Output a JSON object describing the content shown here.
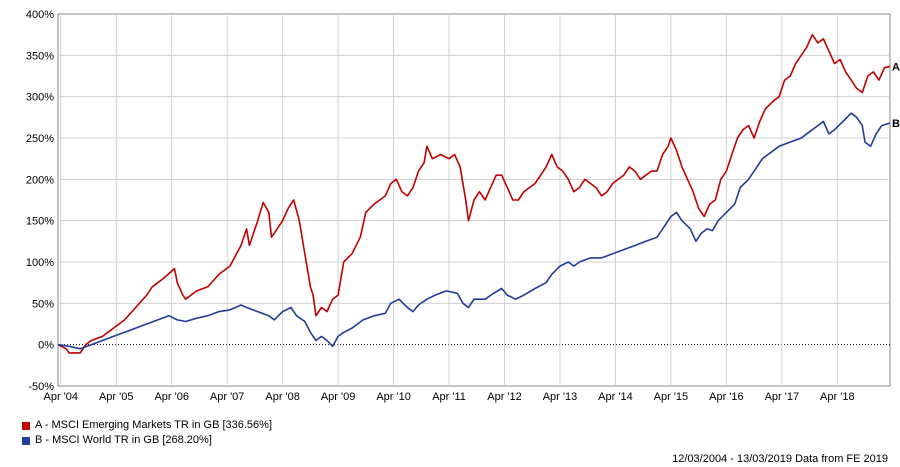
{
  "chart_data": {
    "type": "line",
    "title": "",
    "xlabel": "",
    "ylabel": "",
    "ylim": [
      -50,
      400
    ],
    "yticks": [
      -50,
      0,
      50,
      100,
      150,
      200,
      250,
      300,
      350,
      400
    ],
    "ytick_labels": [
      "-50%",
      "0%",
      "50%",
      "100%",
      "150%",
      "200%",
      "250%",
      "300%",
      "350%",
      "400%"
    ],
    "xlim": [
      2004.2,
      2019.2
    ],
    "xtick_labels": [
      {
        "label": "Apr '04",
        "x": 2004.25
      },
      {
        "label": "Apr '05",
        "x": 2005.25
      },
      {
        "label": "Apr '06",
        "x": 2006.25
      },
      {
        "label": "Apr '07",
        "x": 2007.25
      },
      {
        "label": "Apr '08",
        "x": 2008.25
      },
      {
        "label": "Apr '09",
        "x": 2009.25
      },
      {
        "label": "Apr '10",
        "x": 2010.25
      },
      {
        "label": "Apr '11",
        "x": 2011.25
      },
      {
        "label": "Apr '12",
        "x": 2012.25
      },
      {
        "label": "Apr '13",
        "x": 2013.25
      },
      {
        "label": "Apr '14",
        "x": 2014.25
      },
      {
        "label": "Apr '15",
        "x": 2015.25
      },
      {
        "label": "Apr '16",
        "x": 2016.25
      },
      {
        "label": "Apr '17",
        "x": 2017.25
      },
      {
        "label": "Apr '18",
        "x": 2018.25
      }
    ],
    "grid": true,
    "series": [
      {
        "name": "A - MSCI Emerging Markets TR in GB [336.56%]",
        "end_label": "A",
        "color": "#c00000",
        "points": [
          [
            2004.2,
            0
          ],
          [
            2004.35,
            -5
          ],
          [
            2004.4,
            -10
          ],
          [
            2004.6,
            -10
          ],
          [
            2004.7,
            0
          ],
          [
            2004.8,
            5
          ],
          [
            2005.0,
            10
          ],
          [
            2005.2,
            20
          ],
          [
            2005.4,
            30
          ],
          [
            2005.6,
            45
          ],
          [
            2005.8,
            60
          ],
          [
            2005.9,
            70
          ],
          [
            2006.1,
            80
          ],
          [
            2006.3,
            92
          ],
          [
            2006.35,
            75
          ],
          [
            2006.45,
            60
          ],
          [
            2006.5,
            55
          ],
          [
            2006.7,
            65
          ],
          [
            2006.9,
            70
          ],
          [
            2007.1,
            85
          ],
          [
            2007.3,
            95
          ],
          [
            2007.5,
            120
          ],
          [
            2007.6,
            140
          ],
          [
            2007.65,
            120
          ],
          [
            2007.8,
            150
          ],
          [
            2007.9,
            172
          ],
          [
            2008.0,
            160
          ],
          [
            2008.05,
            130
          ],
          [
            2008.15,
            140
          ],
          [
            2008.25,
            150
          ],
          [
            2008.35,
            165
          ],
          [
            2008.45,
            175
          ],
          [
            2008.55,
            150
          ],
          [
            2008.65,
            110
          ],
          [
            2008.75,
            70
          ],
          [
            2008.8,
            60
          ],
          [
            2008.85,
            35
          ],
          [
            2008.95,
            45
          ],
          [
            2009.05,
            40
          ],
          [
            2009.15,
            55
          ],
          [
            2009.25,
            60
          ],
          [
            2009.35,
            100
          ],
          [
            2009.5,
            110
          ],
          [
            2009.65,
            130
          ],
          [
            2009.75,
            160
          ],
          [
            2009.9,
            170
          ],
          [
            2010.1,
            180
          ],
          [
            2010.2,
            195
          ],
          [
            2010.3,
            200
          ],
          [
            2010.4,
            185
          ],
          [
            2010.5,
            180
          ],
          [
            2010.6,
            190
          ],
          [
            2010.7,
            210
          ],
          [
            2010.8,
            220
          ],
          [
            2010.85,
            240
          ],
          [
            2010.95,
            225
          ],
          [
            2011.1,
            230
          ],
          [
            2011.25,
            225
          ],
          [
            2011.35,
            230
          ],
          [
            2011.45,
            215
          ],
          [
            2011.55,
            175
          ],
          [
            2011.6,
            150
          ],
          [
            2011.7,
            175
          ],
          [
            2011.8,
            185
          ],
          [
            2011.9,
            175
          ],
          [
            2012.0,
            190
          ],
          [
            2012.1,
            205
          ],
          [
            2012.2,
            205
          ],
          [
            2012.3,
            190
          ],
          [
            2012.4,
            175
          ],
          [
            2012.5,
            175
          ],
          [
            2012.6,
            185
          ],
          [
            2012.7,
            190
          ],
          [
            2012.8,
            195
          ],
          [
            2012.9,
            205
          ],
          [
            2013.0,
            215
          ],
          [
            2013.1,
            230
          ],
          [
            2013.2,
            215
          ],
          [
            2013.3,
            210
          ],
          [
            2013.4,
            200
          ],
          [
            2013.5,
            185
          ],
          [
            2013.6,
            190
          ],
          [
            2013.7,
            200
          ],
          [
            2013.8,
            195
          ],
          [
            2013.9,
            190
          ],
          [
            2014.0,
            180
          ],
          [
            2014.1,
            185
          ],
          [
            2014.2,
            195
          ],
          [
            2014.3,
            200
          ],
          [
            2014.4,
            205
          ],
          [
            2014.5,
            215
          ],
          [
            2014.6,
            210
          ],
          [
            2014.7,
            200
          ],
          [
            2014.8,
            205
          ],
          [
            2014.9,
            210
          ],
          [
            2015.0,
            210
          ],
          [
            2015.1,
            230
          ],
          [
            2015.2,
            240
          ],
          [
            2015.25,
            250
          ],
          [
            2015.35,
            235
          ],
          [
            2015.45,
            215
          ],
          [
            2015.55,
            200
          ],
          [
            2015.65,
            185
          ],
          [
            2015.75,
            165
          ],
          [
            2015.85,
            155
          ],
          [
            2015.95,
            170
          ],
          [
            2016.05,
            175
          ],
          [
            2016.15,
            200
          ],
          [
            2016.25,
            210
          ],
          [
            2016.35,
            230
          ],
          [
            2016.45,
            250
          ],
          [
            2016.55,
            260
          ],
          [
            2016.65,
            265
          ],
          [
            2016.75,
            250
          ],
          [
            2016.85,
            270
          ],
          [
            2016.95,
            285
          ],
          [
            2017.1,
            295
          ],
          [
            2017.2,
            300
          ],
          [
            2017.3,
            320
          ],
          [
            2017.4,
            325
          ],
          [
            2017.5,
            340
          ],
          [
            2017.6,
            350
          ],
          [
            2017.7,
            360
          ],
          [
            2017.8,
            375
          ],
          [
            2017.9,
            365
          ],
          [
            2018.0,
            370
          ],
          [
            2018.1,
            355
          ],
          [
            2018.2,
            340
          ],
          [
            2018.3,
            345
          ],
          [
            2018.4,
            330
          ],
          [
            2018.5,
            320
          ],
          [
            2018.6,
            310
          ],
          [
            2018.7,
            305
          ],
          [
            2018.8,
            325
          ],
          [
            2018.9,
            330
          ],
          [
            2019.0,
            320
          ],
          [
            2019.1,
            335
          ],
          [
            2019.2,
            336.56
          ]
        ]
      },
      {
        "name": "B - MSCI World TR in GB [268.20%]",
        "end_label": "B",
        "color": "#1f3d99",
        "points": [
          [
            2004.2,
            0
          ],
          [
            2004.4,
            -2
          ],
          [
            2004.6,
            -5
          ],
          [
            2004.8,
            0
          ],
          [
            2005.0,
            5
          ],
          [
            2005.2,
            10
          ],
          [
            2005.4,
            15
          ],
          [
            2005.6,
            20
          ],
          [
            2005.8,
            25
          ],
          [
            2006.0,
            30
          ],
          [
            2006.2,
            35
          ],
          [
            2006.35,
            30
          ],
          [
            2006.5,
            28
          ],
          [
            2006.7,
            32
          ],
          [
            2006.9,
            35
          ],
          [
            2007.1,
            40
          ],
          [
            2007.3,
            42
          ],
          [
            2007.5,
            48
          ],
          [
            2007.6,
            45
          ],
          [
            2007.8,
            40
          ],
          [
            2008.0,
            35
          ],
          [
            2008.1,
            30
          ],
          [
            2008.25,
            40
          ],
          [
            2008.4,
            45
          ],
          [
            2008.5,
            35
          ],
          [
            2008.65,
            28
          ],
          [
            2008.75,
            15
          ],
          [
            2008.85,
            5
          ],
          [
            2008.95,
            10
          ],
          [
            2009.05,
            5
          ],
          [
            2009.15,
            -2
          ],
          [
            2009.25,
            10
          ],
          [
            2009.35,
            15
          ],
          [
            2009.5,
            20
          ],
          [
            2009.7,
            30
          ],
          [
            2009.9,
            35
          ],
          [
            2010.1,
            38
          ],
          [
            2010.2,
            50
          ],
          [
            2010.35,
            55
          ],
          [
            2010.5,
            45
          ],
          [
            2010.6,
            40
          ],
          [
            2010.7,
            48
          ],
          [
            2010.85,
            55
          ],
          [
            2011.0,
            60
          ],
          [
            2011.2,
            65
          ],
          [
            2011.4,
            62
          ],
          [
            2011.5,
            50
          ],
          [
            2011.6,
            45
          ],
          [
            2011.7,
            55
          ],
          [
            2011.9,
            55
          ],
          [
            2012.05,
            62
          ],
          [
            2012.2,
            68
          ],
          [
            2012.3,
            60
          ],
          [
            2012.45,
            55
          ],
          [
            2012.6,
            60
          ],
          [
            2012.8,
            68
          ],
          [
            2013.0,
            75
          ],
          [
            2013.1,
            85
          ],
          [
            2013.25,
            95
          ],
          [
            2013.4,
            100
          ],
          [
            2013.5,
            95
          ],
          [
            2013.6,
            100
          ],
          [
            2013.8,
            105
          ],
          [
            2014.0,
            105
          ],
          [
            2014.2,
            110
          ],
          [
            2014.4,
            115
          ],
          [
            2014.6,
            120
          ],
          [
            2014.8,
            125
          ],
          [
            2015.0,
            130
          ],
          [
            2015.1,
            140
          ],
          [
            2015.25,
            155
          ],
          [
            2015.35,
            160
          ],
          [
            2015.45,
            150
          ],
          [
            2015.6,
            140
          ],
          [
            2015.7,
            125
          ],
          [
            2015.8,
            135
          ],
          [
            2015.9,
            140
          ],
          [
            2016.0,
            138
          ],
          [
            2016.1,
            150
          ],
          [
            2016.25,
            160
          ],
          [
            2016.4,
            170
          ],
          [
            2016.5,
            190
          ],
          [
            2016.65,
            200
          ],
          [
            2016.8,
            215
          ],
          [
            2016.9,
            225
          ],
          [
            2017.0,
            230
          ],
          [
            2017.2,
            240
          ],
          [
            2017.4,
            245
          ],
          [
            2017.6,
            250
          ],
          [
            2017.8,
            260
          ],
          [
            2017.9,
            265
          ],
          [
            2018.0,
            270
          ],
          [
            2018.1,
            255
          ],
          [
            2018.2,
            260
          ],
          [
            2018.35,
            270
          ],
          [
            2018.5,
            280
          ],
          [
            2018.6,
            275
          ],
          [
            2018.7,
            265
          ],
          [
            2018.75,
            245
          ],
          [
            2018.85,
            240
          ],
          [
            2018.95,
            255
          ],
          [
            2019.05,
            265
          ],
          [
            2019.2,
            268.2
          ]
        ]
      }
    ],
    "legend_position": "bottom-left"
  },
  "footer": {
    "text": "12/03/2004 - 13/03/2019 Data from FE 2019"
  }
}
